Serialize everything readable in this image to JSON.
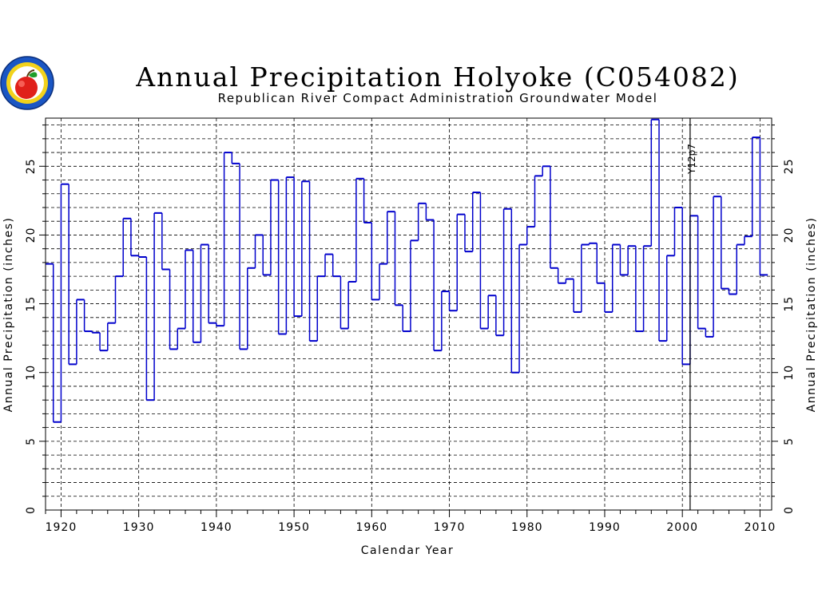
{
  "chart_data": {
    "type": "line",
    "step": true,
    "title": "Annual Precipitation Holyoke (C054082)",
    "subtitle": "Republican River Compact Administration Groundwater Model",
    "xlabel": "Calendar Year",
    "ylabel": "Annual Precipitation (inches)",
    "xlim": [
      1918,
      2011.5
    ],
    "ylim": [
      0,
      28.5
    ],
    "x_ticks": [
      1920,
      1930,
      1940,
      1950,
      1960,
      1970,
      1980,
      1990,
      2000,
      2010
    ],
    "y_ticks": [
      0,
      5,
      10,
      15,
      20,
      25
    ],
    "grid": true,
    "colors": {
      "series": "#0000cc",
      "grid": "#000000"
    },
    "annotation": {
      "label": "Y12p7",
      "x": 2001
    },
    "x": [
      1918,
      1919,
      1920,
      1921,
      1922,
      1923,
      1924,
      1925,
      1926,
      1927,
      1928,
      1929,
      1930,
      1931,
      1932,
      1933,
      1934,
      1935,
      1936,
      1937,
      1938,
      1939,
      1940,
      1941,
      1942,
      1943,
      1944,
      1945,
      1946,
      1947,
      1948,
      1949,
      1950,
      1951,
      1952,
      1953,
      1954,
      1955,
      1956,
      1957,
      1958,
      1959,
      1960,
      1961,
      1962,
      1963,
      1964,
      1965,
      1966,
      1967,
      1968,
      1969,
      1970,
      1971,
      1972,
      1973,
      1974,
      1975,
      1976,
      1977,
      1978,
      1979,
      1980,
      1981,
      1982,
      1983,
      1984,
      1985,
      1986,
      1987,
      1988,
      1989,
      1990,
      1991,
      1992,
      1993,
      1994,
      1995,
      1996,
      1997,
      1998,
      1999,
      2000,
      2001,
      2002,
      2003,
      2004,
      2005,
      2006,
      2007,
      2008,
      2009,
      2010
    ],
    "values": [
      17.9,
      6.4,
      23.7,
      10.6,
      15.3,
      13.0,
      12.9,
      11.6,
      13.6,
      17.0,
      21.2,
      18.5,
      18.4,
      8.0,
      21.6,
      17.5,
      11.7,
      13.2,
      18.9,
      12.2,
      19.3,
      13.6,
      13.4,
      26.0,
      25.2,
      11.7,
      17.6,
      20.0,
      17.1,
      24.0,
      12.8,
      24.2,
      14.1,
      23.9,
      12.3,
      17.0,
      18.6,
      17.0,
      13.2,
      16.6,
      24.1,
      20.9,
      15.3,
      17.9,
      21.7,
      14.9,
      13.0,
      19.6,
      22.3,
      21.1,
      11.6,
      15.9,
      14.5,
      21.5,
      18.8,
      23.1,
      13.2,
      15.6,
      12.7,
      21.9,
      10.0,
      19.3,
      20.6,
      24.3,
      25.0,
      17.6,
      16.5,
      16.8,
      14.4,
      19.3,
      19.4,
      16.5,
      14.4,
      19.3,
      17.1,
      19.2,
      13.0,
      19.2,
      28.4,
      12.3,
      18.5,
      22.0,
      10.6,
      21.4,
      13.2,
      12.6,
      22.8,
      16.1,
      15.7,
      19.3,
      19.9,
      27.1,
      17.1
    ]
  },
  "logo": {
    "name": "rrca-seal"
  }
}
